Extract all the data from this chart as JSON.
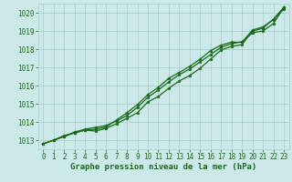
{
  "x": [
    0,
    1,
    2,
    3,
    4,
    5,
    6,
    7,
    8,
    9,
    10,
    11,
    12,
    13,
    14,
    15,
    16,
    17,
    18,
    19,
    20,
    21,
    22,
    23
  ],
  "line1": [
    1012.8,
    1013.0,
    1013.2,
    1013.4,
    1013.55,
    1013.5,
    1013.65,
    1013.9,
    1014.2,
    1014.5,
    1015.1,
    1015.4,
    1015.85,
    1016.25,
    1016.55,
    1016.95,
    1017.45,
    1017.95,
    1018.15,
    1018.25,
    1019.0,
    1019.15,
    1019.65,
    1020.3
  ],
  "line2": [
    1012.8,
    1013.0,
    1013.2,
    1013.45,
    1013.6,
    1013.7,
    1013.8,
    1014.05,
    1014.35,
    1014.8,
    1015.35,
    1015.75,
    1016.2,
    1016.6,
    1016.9,
    1017.3,
    1017.7,
    1018.1,
    1018.3,
    1018.4,
    1018.9,
    1019.0,
    1019.4,
    1020.3
  ],
  "line3": [
    1012.8,
    1013.0,
    1013.25,
    1013.4,
    1013.55,
    1013.6,
    1013.72,
    1014.1,
    1014.5,
    1014.95,
    1015.5,
    1015.9,
    1016.4,
    1016.72,
    1017.05,
    1017.45,
    1017.92,
    1018.22,
    1018.38,
    1018.38,
    1019.05,
    1019.22,
    1019.62,
    1020.2
  ],
  "xlim_min": -0.5,
  "xlim_max": 23.5,
  "ylim_min": 1012.5,
  "ylim_max": 1020.5,
  "yticks": [
    1013,
    1014,
    1015,
    1016,
    1017,
    1018,
    1019,
    1020
  ],
  "xticks": [
    0,
    1,
    2,
    3,
    4,
    5,
    6,
    7,
    8,
    9,
    10,
    11,
    12,
    13,
    14,
    15,
    16,
    17,
    18,
    19,
    20,
    21,
    22,
    23
  ],
  "xlabel": "Graphe pression niveau de la mer (hPa)",
  "line_color": "#1a6b1a",
  "marker": "*",
  "bg_color": "#cce8e8",
  "grid_color": "#aacccc",
  "tick_label_color": "#1a6b1a",
  "xlabel_color": "#1a6b1a",
  "tick_fontsize": 5.5,
  "xlabel_fontsize": 6.5
}
